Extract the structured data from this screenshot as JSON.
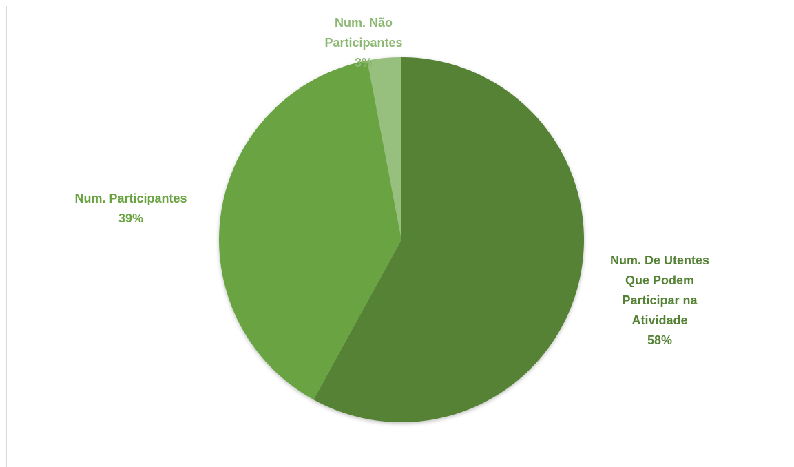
{
  "chart_data": {
    "type": "pie",
    "title": "",
    "slices": [
      {
        "label": "Num. De Utentes Que Podem Participar na Atividade",
        "label_lines": [
          "Num. De Utentes",
          "Que Podem",
          "Participar na",
          "Atividade"
        ],
        "value": 58,
        "pct_text": "58%",
        "color": "#548235"
      },
      {
        "label": "Num. Participantes",
        "label_lines": [
          "Num. Participantes"
        ],
        "value": 39,
        "pct_text": "39%",
        "color": "#6aa342"
      },
      {
        "label": "Num. Não Participantes",
        "label_lines": [
          "Num. Não",
          "Participantes"
        ],
        "value": 3,
        "pct_text": "3%",
        "color": "#97bf7d"
      }
    ],
    "label_colors": [
      "#548235",
      "#6aa342",
      "#8db873"
    ],
    "legend": "none"
  }
}
